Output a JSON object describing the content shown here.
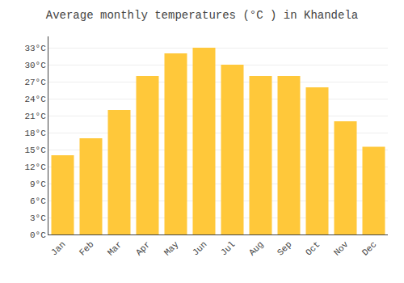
{
  "chart_data": {
    "type": "bar",
    "title": "Average monthly temperatures (°C ) in Khandela",
    "categories": [
      "Jan",
      "Feb",
      "Mar",
      "Apr",
      "May",
      "Jun",
      "Jul",
      "Aug",
      "Sep",
      "Oct",
      "Nov",
      "Dec"
    ],
    "values": [
      14,
      17,
      22,
      28,
      32,
      33,
      30,
      28,
      28,
      26,
      20,
      15.5
    ],
    "color": "#FFC83A",
    "ylim": [
      0,
      35
    ],
    "yticks": [
      {
        "value": 0,
        "label": "0°C"
      },
      {
        "value": 3,
        "label": "3°C"
      },
      {
        "value": 6,
        "label": "6°C"
      },
      {
        "value": 9,
        "label": "9°C"
      },
      {
        "value": 12,
        "label": "12°C"
      },
      {
        "value": 15,
        "label": "15°C"
      },
      {
        "value": 18,
        "label": "18°C"
      },
      {
        "value": 21,
        "label": "21°C"
      },
      {
        "value": 24,
        "label": "24°C"
      },
      {
        "value": 27,
        "label": "27°C"
      },
      {
        "value": 30,
        "label": "30°C"
      },
      {
        "value": 33,
        "label": "33°C"
      }
    ],
    "grid": true
  }
}
